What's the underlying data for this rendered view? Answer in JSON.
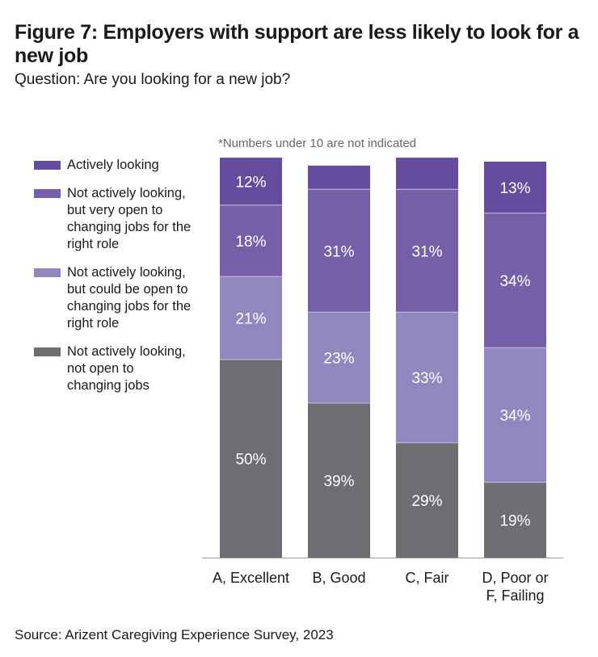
{
  "title": "Figure 7: Employers with support are less likely to look for a new job",
  "subtitle": "Question: Are you looking for a new job?",
  "note": "*Numbers under 10 are not indicated",
  "source": "Source: Arizent Caregiving Experience Survey, 2023",
  "chart_data": {
    "type": "bar",
    "stacked": true,
    "title": "Figure 7: Employers with support are less likely to look for a new job",
    "subtitle": "Question: Are you looking for a new job?",
    "xlabel": "",
    "ylabel": "",
    "ylim": [
      0,
      100
    ],
    "grid": false,
    "legend_position": "left",
    "annotation": "*Numbers under 10 are not indicated",
    "categories": [
      "A, Excellent",
      "B, Good",
      "C, Fair",
      "D, Poor or F, Failing"
    ],
    "category_lines": [
      [
        "A, Excellent"
      ],
      [
        "B, Good"
      ],
      [
        "C, Fair"
      ],
      [
        "D, Poor or",
        "F, Failing"
      ]
    ],
    "series": [
      {
        "name": "Not actively looking, not open to changing jobs",
        "color": "#6d6e71",
        "values": [
          50,
          39,
          29,
          19
        ],
        "labeled": [
          true,
          true,
          true,
          true
        ]
      },
      {
        "name": "Not actively looking, but could be open to changing jobs for the right role",
        "color": "#9188c0",
        "values": [
          21,
          23,
          33,
          34
        ],
        "labeled": [
          true,
          true,
          true,
          true
        ]
      },
      {
        "name": "Not actively looking, but very open to changing jobs for the right role",
        "color": "#7560a8",
        "values": [
          18,
          31,
          31,
          34
        ],
        "labeled": [
          true,
          true,
          true,
          true
        ]
      },
      {
        "name": "Actively looking",
        "color": "#664c9e",
        "values": [
          12,
          6,
          8,
          13
        ],
        "labeled": [
          true,
          false,
          false,
          true
        ]
      }
    ]
  },
  "legend": [
    {
      "label": "Actively looking",
      "color": "#664c9e"
    },
    {
      "label": "Not actively looking, but very open to changing jobs for the right role",
      "color": "#7560a8"
    },
    {
      "label": "Not actively looking, but could be open to changing jobs for the right role",
      "color": "#9188c0"
    },
    {
      "label": "Not actively looking, not open to changing jobs",
      "color": "#6d6e71"
    }
  ]
}
